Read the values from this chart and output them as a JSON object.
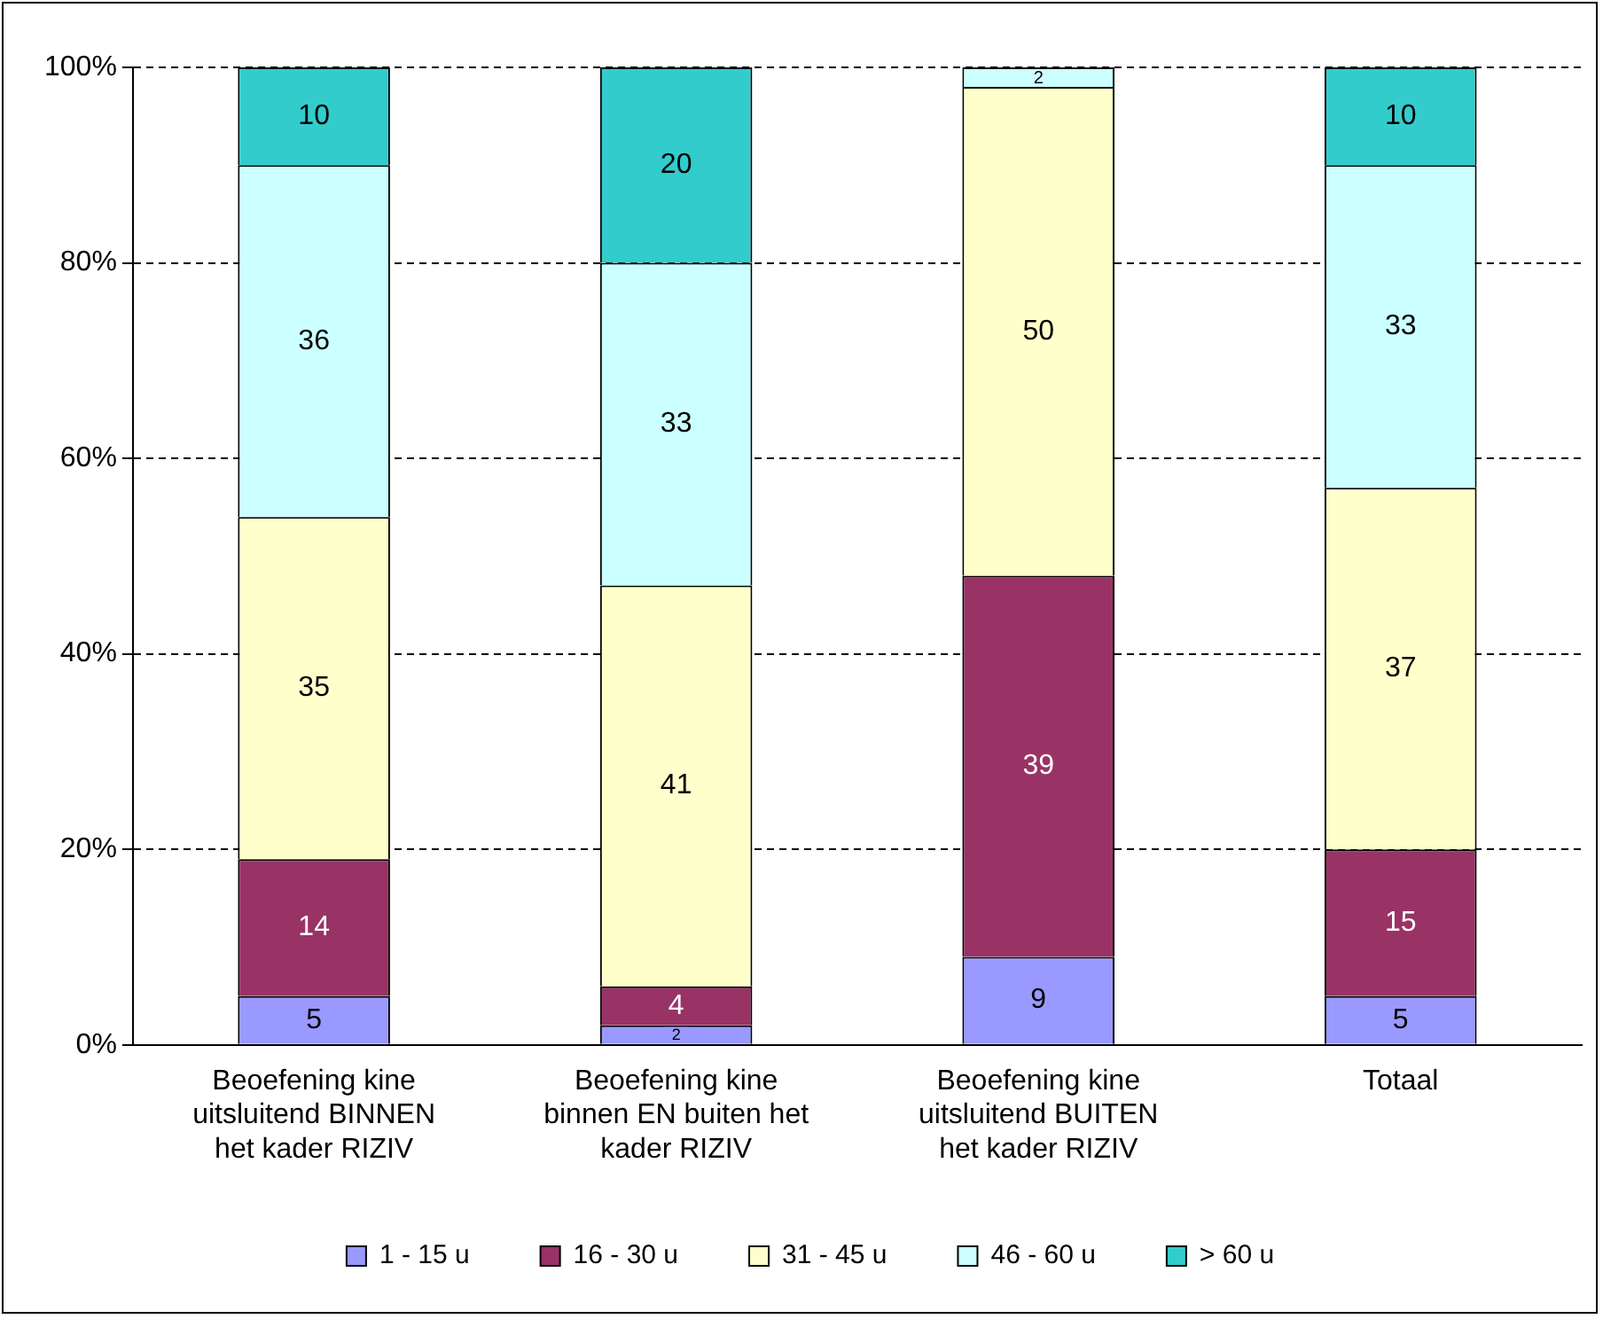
{
  "chart_data": {
    "type": "bar",
    "stacked": true,
    "categories": [
      "Beoefening kine uitsluitend BINNEN het kader RIZIV",
      "Beoefening kine binnen EN buiten het kader RIZIV",
      "Beoefening kine uitsluitend BUITEN het kader RIZIV",
      "Totaal"
    ],
    "series": [
      {
        "name": "1 - 15 u",
        "color": "#9999ff",
        "values": [
          5,
          2,
          9,
          5
        ],
        "value_labels": [
          "5",
          "2",
          "9",
          "5"
        ]
      },
      {
        "name": "16 - 30 u",
        "color": "#993366",
        "values": [
          14,
          4,
          39,
          15
        ],
        "value_labels": [
          "14",
          "4",
          "39",
          "15"
        ]
      },
      {
        "name": "31 - 45 u",
        "color": "#ffffcc",
        "values": [
          35,
          41,
          50,
          37
        ],
        "value_labels": [
          "35",
          "41",
          "50",
          "37"
        ]
      },
      {
        "name": "46 - 60 u",
        "color": "#ccffff",
        "values": [
          36,
          33,
          2,
          33
        ],
        "value_labels": [
          "36",
          "33",
          "2",
          "33"
        ]
      },
      {
        "name": "> 60 u",
        "color": "#33cccc",
        "values": [
          10,
          20,
          0,
          10
        ],
        "value_labels": [
          "10",
          "20",
          null,
          "10"
        ]
      }
    ],
    "ylim": [
      0,
      100
    ],
    "yticks": [
      {
        "value": 0,
        "label": "0%"
      },
      {
        "value": 20,
        "label": "20%"
      },
      {
        "value": 40,
        "label": "40%"
      },
      {
        "value": 60,
        "label": "60%"
      },
      {
        "value": 80,
        "label": "80%"
      },
      {
        "value": 100,
        "label": "100%"
      }
    ],
    "grid": "y",
    "legend": "bottom"
  }
}
